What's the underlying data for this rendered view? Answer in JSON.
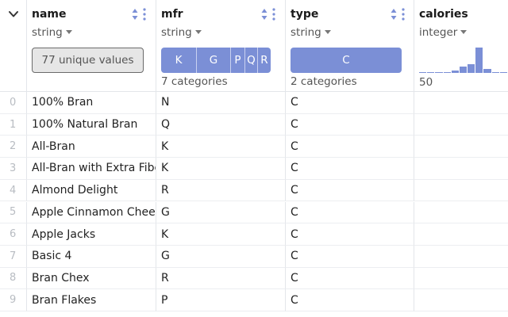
{
  "columns": [
    {
      "name": "name",
      "dtype": "string",
      "summary": "77 unique values"
    },
    {
      "name": "mfr",
      "dtype": "string",
      "categories": [
        "K",
        "G",
        "P",
        "Q",
        "R"
      ],
      "category_shares": [
        0.3,
        0.29,
        0.12,
        0.11,
        0.11
      ],
      "summary": "7 categories"
    },
    {
      "name": "type",
      "dtype": "string",
      "categories": [
        "C"
      ],
      "category_shares": [
        0.95
      ],
      "summary": "2 categories"
    },
    {
      "name": "calories",
      "dtype": "integer",
      "histogram_min": "50",
      "histogram_counts": [
        1,
        0,
        1,
        0,
        2,
        6,
        8,
        24,
        4,
        1,
        1
      ]
    }
  ],
  "rows": [
    {
      "index": "0",
      "name": "100% Bran",
      "mfr": "N",
      "type": "C",
      "calories": ""
    },
    {
      "index": "1",
      "name": "100% Natural Bran",
      "mfr": "Q",
      "type": "C",
      "calories": ""
    },
    {
      "index": "2",
      "name": "All-Bran",
      "mfr": "K",
      "type": "C",
      "calories": ""
    },
    {
      "index": "3",
      "name": "All-Bran with Extra Fiber",
      "mfr": "K",
      "type": "C",
      "calories": ""
    },
    {
      "index": "4",
      "name": "Almond Delight",
      "mfr": "R",
      "type": "C",
      "calories": ""
    },
    {
      "index": "5",
      "name": "Apple Cinnamon Cheerios",
      "mfr": "G",
      "type": "C",
      "calories": ""
    },
    {
      "index": "6",
      "name": "Apple Jacks",
      "mfr": "K",
      "type": "C",
      "calories": ""
    },
    {
      "index": "7",
      "name": "Basic 4",
      "mfr": "G",
      "type": "C",
      "calories": ""
    },
    {
      "index": "8",
      "name": "Bran Chex",
      "mfr": "R",
      "type": "C",
      "calories": ""
    },
    {
      "index": "9",
      "name": "Bran Flakes",
      "mfr": "P",
      "type": "C",
      "calories": ""
    }
  ],
  "colors": {
    "accent": "#7b8fd6",
    "border": "#e3e6ea",
    "muted": "#555555"
  }
}
